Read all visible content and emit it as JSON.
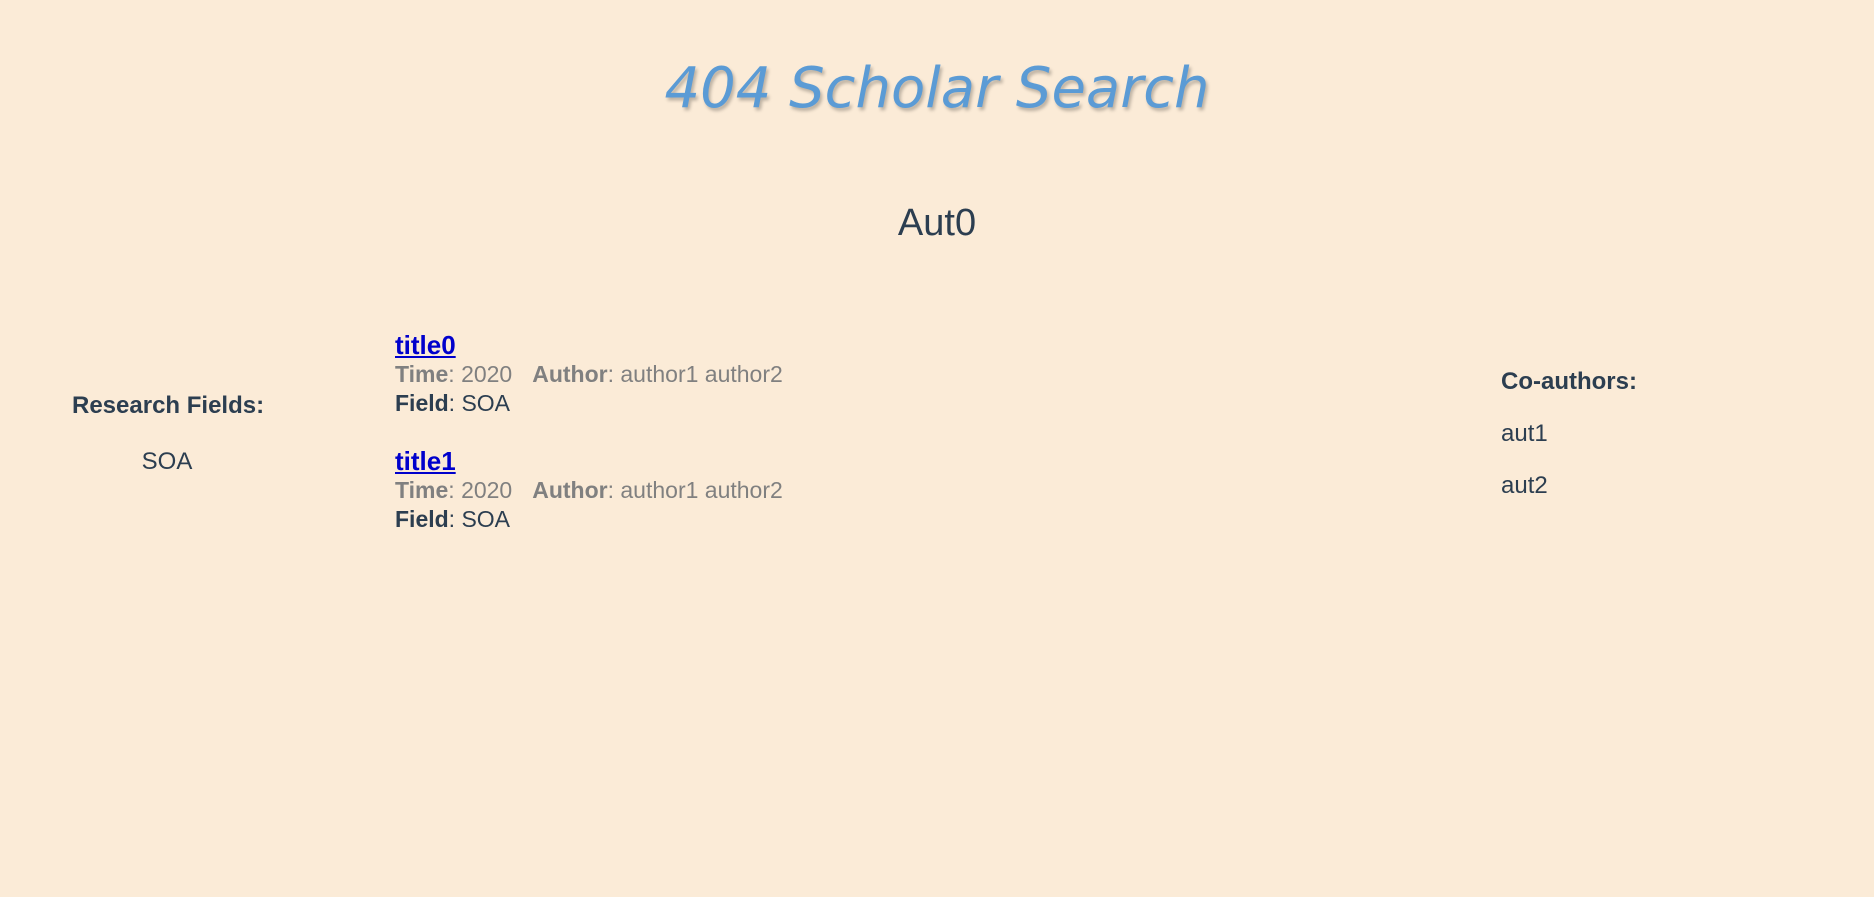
{
  "header": {
    "brand": "404 Scholar Search"
  },
  "author": {
    "name": "Aut0"
  },
  "research_fields": {
    "heading": "Research Fields:",
    "items": [
      "SOA"
    ]
  },
  "papers": {
    "time_label": "Time",
    "author_label": "Author",
    "field_label": "Field",
    "items": [
      {
        "title": "title0",
        "time": "2020",
        "authors": "author1 author2",
        "field": "SOA"
      },
      {
        "title": "title1",
        "time": "2020",
        "authors": "author1 author2",
        "field": "SOA"
      }
    ]
  },
  "coauthors": {
    "heading": "Co-authors:",
    "items": [
      "aut1",
      "aut2"
    ]
  },
  "colors": {
    "background": "#FBEBD7",
    "brand": "#5B9BD5",
    "link": "#0000CC",
    "text": "#2c3e50",
    "meta": "#808080"
  }
}
